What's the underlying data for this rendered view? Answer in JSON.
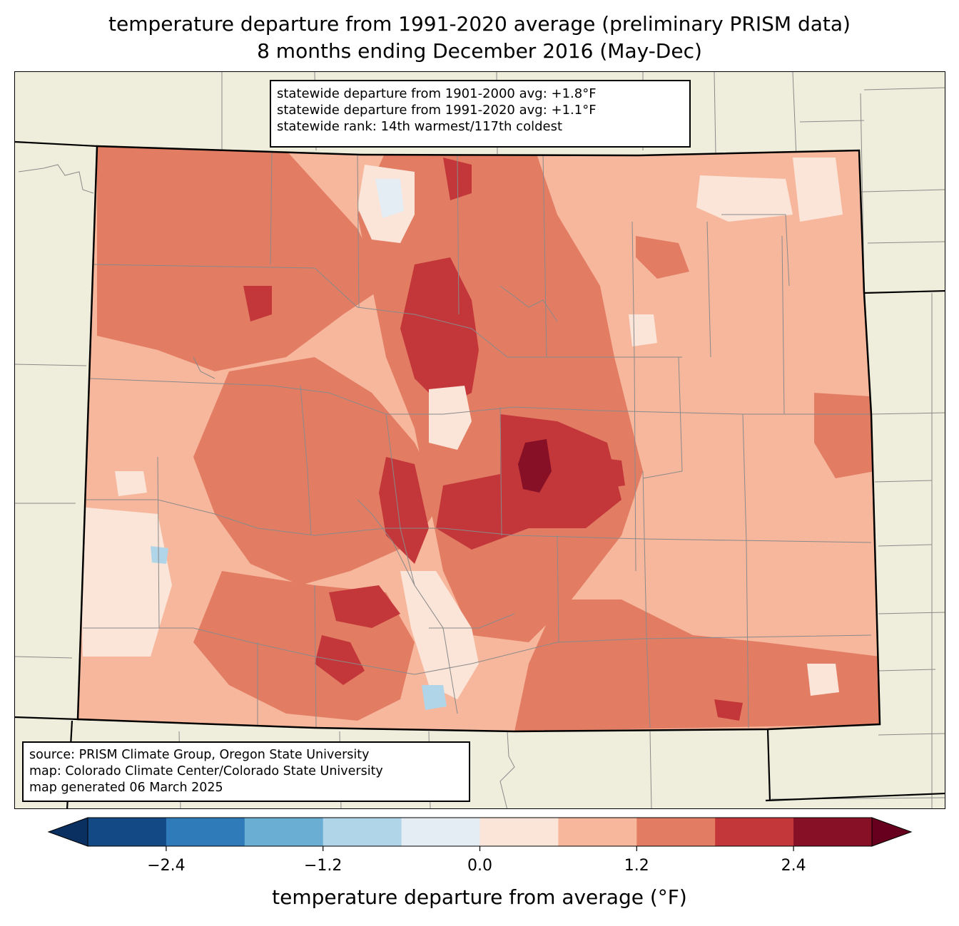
{
  "title": {
    "line1": "temperature departure from 1991-2020 average (preliminary PRISM data)",
    "line2": "8 months ending December 2016 (May-Dec)"
  },
  "stats": {
    "line1": "statewide departure from 1901-2000 avg: +1.8°F",
    "line2": "statewide departure from 1991-2020 avg: +1.1°F",
    "line3": "statewide rank: 14th warmest/117th coldest"
  },
  "source": {
    "line1": "source: PRISM Climate Group, Oregon State University",
    "line2": "map: Colorado Climate Center/Colorado State University",
    "line3": "map generated 06 March 2025"
  },
  "colorbar": {
    "label": "temperature departure from average (°F)",
    "ticks": [
      "−2.4",
      "−1.2",
      "0.0",
      "1.2",
      "2.4"
    ],
    "bins": [
      {
        "value": -3.0,
        "color": "#134a86"
      },
      {
        "value": -2.4,
        "color": "#2f7ab8"
      },
      {
        "value": -1.8,
        "color": "#6aaed3"
      },
      {
        "value": -1.2,
        "color": "#b1d5e8"
      },
      {
        "value": -0.6,
        "color": "#e4edf4"
      },
      {
        "value": 0.0,
        "color": "#fbe4d8"
      },
      {
        "value": 0.6,
        "color": "#f7b79d"
      },
      {
        "value": 1.2,
        "color": "#e27d64"
      },
      {
        "value": 1.8,
        "color": "#c3373a"
      },
      {
        "value": 2.4,
        "color": "#870f26"
      }
    ],
    "under_color": "#0a2f61",
    "over_color": "#67001f"
  },
  "colors": {
    "background_land": "#efeedc"
  }
}
